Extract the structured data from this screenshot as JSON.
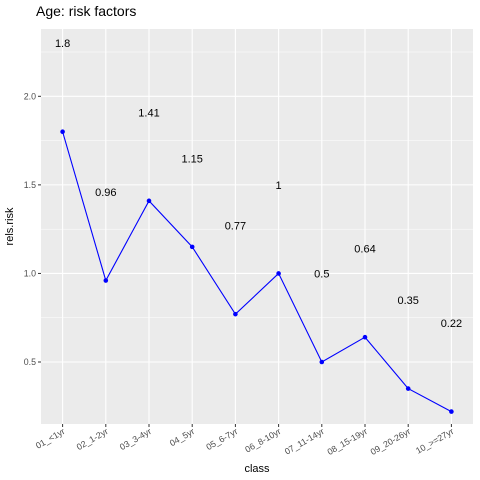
{
  "chart_data": {
    "type": "line",
    "title": "Age: risk factors",
    "xlabel": "class",
    "ylabel": "rels.risk",
    "categories": [
      "01_<1yr",
      "02_1-2yr",
      "03_3-4yr",
      "04_5yr",
      "05_6-7yr",
      "06_8-10yr",
      "07_11-14yr",
      "08_15-19yr",
      "09_20-26yr",
      "10_>=27yr"
    ],
    "values": [
      1.8,
      0.96,
      1.41,
      1.15,
      0.77,
      1.0,
      0.5,
      0.64,
      0.35,
      0.22
    ],
    "data_labels": [
      "1.8",
      "0.96",
      "1.41",
      "1.15",
      "0.77",
      "1",
      "0.5",
      "0.64",
      "0.35",
      "0.22"
    ],
    "yticks": [
      0.5,
      1.0,
      1.5,
      2.0
    ],
    "ytick_labels": [
      "0.5",
      "1.0",
      "1.5",
      "2.0"
    ],
    "ylim": [
      0.15,
      2.38
    ],
    "grid": true,
    "line_color": "#0000ff",
    "point_color": "#0000ff",
    "panel_color": "#ebebeb",
    "grid_color": "#ffffff"
  }
}
